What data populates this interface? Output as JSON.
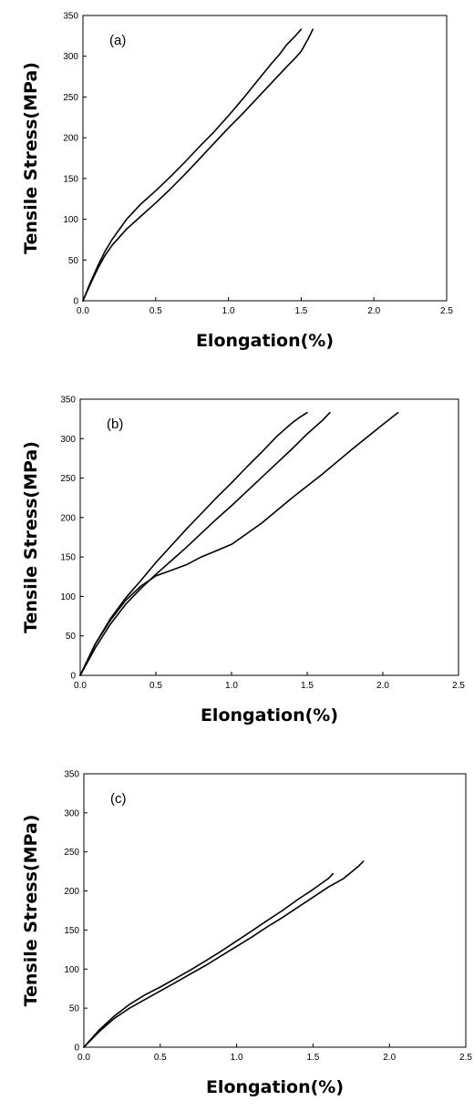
{
  "chart_data": [
    {
      "type": "line",
      "panel_label": "(a)",
      "xlabel": "Elongation(%)",
      "ylabel": "Tensile Stress(MPa)",
      "xlim": [
        0,
        2.5
      ],
      "ylim": [
        0,
        350
      ],
      "xticks": [
        "0.0",
        "0.5",
        "1.0",
        "1.5",
        "2.0",
        "2.5"
      ],
      "yticks": [
        "0",
        "50",
        "100",
        "150",
        "200",
        "250",
        "300",
        "350"
      ],
      "grid": false,
      "series": [
        {
          "x": [
            0,
            0.05,
            0.1,
            0.15,
            0.2,
            0.3,
            0.4,
            0.5,
            0.6,
            0.7,
            0.8,
            0.9,
            1.0,
            1.1,
            1.2,
            1.3,
            1.35,
            1.4,
            1.45,
            1.5
          ],
          "y": [
            0,
            22,
            42,
            60,
            75,
            100,
            119,
            135,
            152,
            170,
            189,
            207,
            227,
            248,
            270,
            292,
            302,
            314,
            323,
            333
          ]
        },
        {
          "x": [
            0,
            0.05,
            0.1,
            0.15,
            0.2,
            0.3,
            0.4,
            0.5,
            0.6,
            0.7,
            0.8,
            0.9,
            1.0,
            1.1,
            1.2,
            1.3,
            1.4,
            1.45,
            1.5,
            1.55,
            1.58
          ],
          "y": [
            0,
            20,
            39,
            55,
            68,
            88,
            104,
            120,
            137,
            155,
            174,
            193,
            212,
            230,
            249,
            268,
            287,
            296,
            306,
            322,
            333
          ]
        }
      ]
    },
    {
      "type": "line",
      "panel_label": "(b)",
      "xlabel": "Elongation(%)",
      "ylabel": "Tensile Stress(MPa)",
      "xlim": [
        0,
        2.5
      ],
      "ylim": [
        0,
        350
      ],
      "xticks": [
        "0.0",
        "0.5",
        "1.0",
        "1.5",
        "2.0",
        "2.5"
      ],
      "yticks": [
        "0",
        "50",
        "100",
        "150",
        "200",
        "250",
        "300",
        "350"
      ],
      "grid": false,
      "series": [
        {
          "x": [
            0,
            0.1,
            0.2,
            0.3,
            0.4,
            0.5,
            0.6,
            0.7,
            0.8,
            0.9,
            1.0,
            1.1,
            1.2,
            1.3,
            1.4,
            1.45,
            1.5
          ],
          "y": [
            0,
            40,
            72,
            98,
            120,
            143,
            164,
            185,
            205,
            225,
            244,
            264,
            283,
            303,
            320,
            327,
            333
          ]
        },
        {
          "x": [
            0,
            0.1,
            0.2,
            0.3,
            0.4,
            0.5,
            0.6,
            0.7,
            0.8,
            0.9,
            1.0,
            1.1,
            1.2,
            1.3,
            1.4,
            1.5,
            1.6,
            1.65
          ],
          "y": [
            0,
            35,
            65,
            90,
            110,
            128,
            145,
            162,
            180,
            198,
            215,
            233,
            251,
            269,
            287,
            306,
            323,
            333
          ]
        },
        {
          "x": [
            0,
            0.1,
            0.2,
            0.3,
            0.4,
            0.5,
            0.6,
            0.7,
            0.8,
            0.9,
            1.0,
            1.2,
            1.4,
            1.6,
            1.8,
            2.0,
            2.1
          ],
          "y": [
            0,
            40,
            70,
            95,
            113,
            126,
            133,
            140,
            150,
            158,
            166,
            193,
            225,
            255,
            287,
            318,
            333
          ]
        }
      ]
    },
    {
      "type": "line",
      "panel_label": "(c)",
      "xlabel": "Elongation(%)",
      "ylabel": "Tensile Stress(MPa)",
      "xlim": [
        0,
        2.5
      ],
      "ylim": [
        0,
        350
      ],
      "xticks": [
        "0.0",
        "0.5",
        "1.0",
        "1.5",
        "2.0",
        "2.5"
      ],
      "yticks": [
        "0",
        "50",
        "100",
        "150",
        "200",
        "250",
        "300",
        "350"
      ],
      "grid": false,
      "series": [
        {
          "x": [
            0,
            0.1,
            0.2,
            0.3,
            0.4,
            0.5,
            0.6,
            0.7,
            0.8,
            0.9,
            1.0,
            1.1,
            1.2,
            1.3,
            1.4,
            1.5,
            1.6,
            1.63
          ],
          "y": [
            0,
            22,
            40,
            55,
            67,
            77,
            88,
            99,
            111,
            123,
            136,
            149,
            162,
            175,
            189,
            202,
            216,
            222
          ]
        },
        {
          "x": [
            0,
            0.1,
            0.2,
            0.3,
            0.4,
            0.5,
            0.6,
            0.7,
            0.8,
            0.9,
            1.0,
            1.1,
            1.2,
            1.3,
            1.4,
            1.5,
            1.6,
            1.7,
            1.8,
            1.83
          ],
          "y": [
            0,
            20,
            37,
            50,
            61,
            72,
            83,
            94,
            105,
            117,
            129,
            141,
            154,
            166,
            179,
            192,
            205,
            216,
            232,
            238
          ]
        }
      ]
    }
  ]
}
